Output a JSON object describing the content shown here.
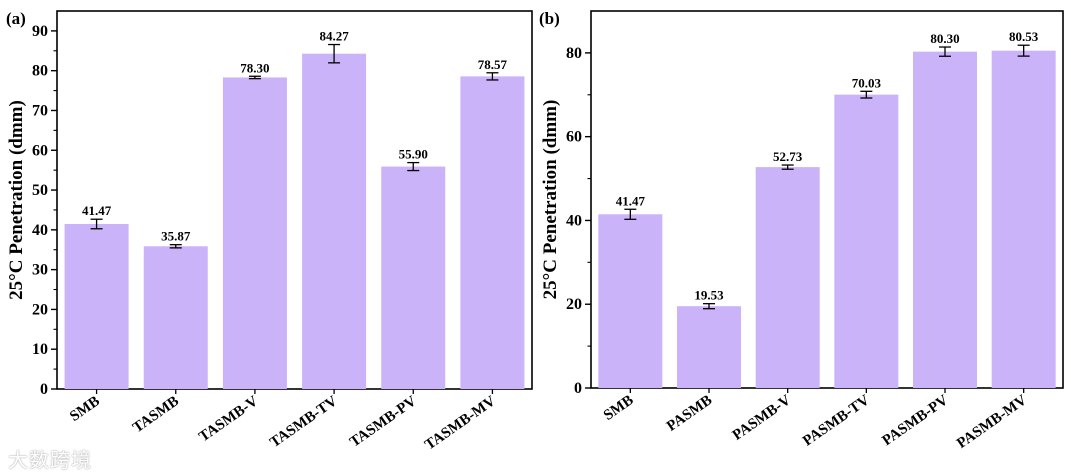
{
  "chart_data": [
    {
      "type": "bar",
      "panel_label": "(a)",
      "ylabel": "25°C Penetration (dmm)",
      "xlabel": "",
      "ylim": [
        0,
        95
      ],
      "yticks": [
        0,
        10,
        20,
        30,
        40,
        50,
        60,
        70,
        80,
        90
      ],
      "categories": [
        "SMB",
        "TASMB",
        "TASMB-V",
        "TASMB-TV",
        "TASMB-PV",
        "TASMB-MV"
      ],
      "values": [
        41.47,
        35.87,
        78.3,
        84.27,
        55.9,
        78.57
      ],
      "value_labels": [
        "41.47",
        "35.87",
        "78.30",
        "84.27",
        "55.90",
        "78.57"
      ],
      "errors": [
        1.2,
        0.4,
        0.3,
        2.3,
        1.0,
        0.9
      ],
      "bar_color": "#cbb3fa"
    },
    {
      "type": "bar",
      "panel_label": "(b)",
      "ylabel": "25°C Penetration (dmm)",
      "xlabel": "",
      "ylim": [
        0,
        90
      ],
      "yticks": [
        0,
        20,
        40,
        60,
        80
      ],
      "categories": [
        "SMB",
        "PASMB",
        "PASMB-V",
        "PASMB-TV",
        "PASMB-PV",
        "PASMB-MV"
      ],
      "values": [
        41.47,
        19.53,
        52.73,
        70.03,
        80.3,
        80.53
      ],
      "value_labels": [
        "41.47",
        "19.53",
        "52.73",
        "70.03",
        "80.30",
        "80.53"
      ],
      "errors": [
        1.2,
        0.6,
        0.5,
        0.8,
        1.1,
        1.3
      ],
      "bar_color": "#cbb3fa"
    }
  ],
  "watermark": "大数跨境"
}
